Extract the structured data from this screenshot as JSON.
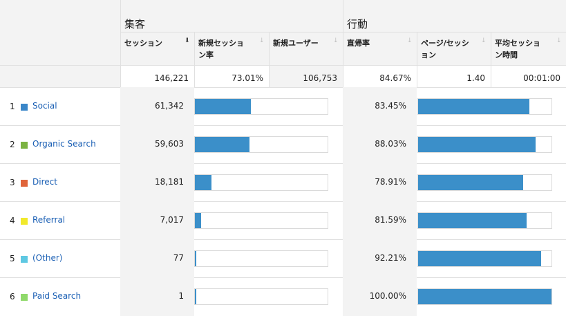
{
  "groups": {
    "acquisition": "集客",
    "behavior": "行動"
  },
  "columns": [
    {
      "key": "sessions",
      "label": "セッション"
    },
    {
      "key": "new_session_rate",
      "label": "新規セッショ\nン率"
    },
    {
      "key": "new_users",
      "label": "新規ユーザー"
    },
    {
      "key": "bounce_rate",
      "label": "直帰率"
    },
    {
      "key": "pages_per_session",
      "label": "ページ/セッシ\nョン"
    },
    {
      "key": "avg_session_duration",
      "label": "平均セッショ\nン時間"
    }
  ],
  "totals": {
    "sessions": "146,221",
    "new_session_rate": "73.01%",
    "new_users": "106,753",
    "bounce_rate": "84.67%",
    "pages_per_session": "1.40",
    "avg_session_duration": "00:01:00"
  },
  "colors": {
    "bar": "#3b8fc9",
    "link": "#1a5fb4"
  },
  "rows": [
    {
      "index": "1",
      "channel": "Social",
      "color": "#3a86c8",
      "sessions": "61,342",
      "session_share": 0.4195,
      "bounce_rate": "83.45%",
      "bounce_fraction": 0.8345
    },
    {
      "index": "2",
      "channel": "Organic Search",
      "color": "#7cb342",
      "sessions": "59,603",
      "session_share": 0.4076,
      "bounce_rate": "88.03%",
      "bounce_fraction": 0.8803
    },
    {
      "index": "3",
      "channel": "Direct",
      "color": "#e0643a",
      "sessions": "18,181",
      "session_share": 0.1243,
      "bounce_rate": "78.91%",
      "bounce_fraction": 0.7891
    },
    {
      "index": "4",
      "channel": "Referral",
      "color": "#f1e92b",
      "sessions": "7,017",
      "session_share": 0.048,
      "bounce_rate": "81.59%",
      "bounce_fraction": 0.8159
    },
    {
      "index": "5",
      "channel": "(Other)",
      "color": "#5ec8e2",
      "sessions": "77",
      "session_share": 0.0005,
      "bounce_rate": "92.21%",
      "bounce_fraction": 0.9221
    },
    {
      "index": "6",
      "channel": "Paid Search",
      "color": "#8fd96a",
      "sessions": "1",
      "session_share": 1e-05,
      "bounce_rate": "100.00%",
      "bounce_fraction": 1.0
    }
  ]
}
